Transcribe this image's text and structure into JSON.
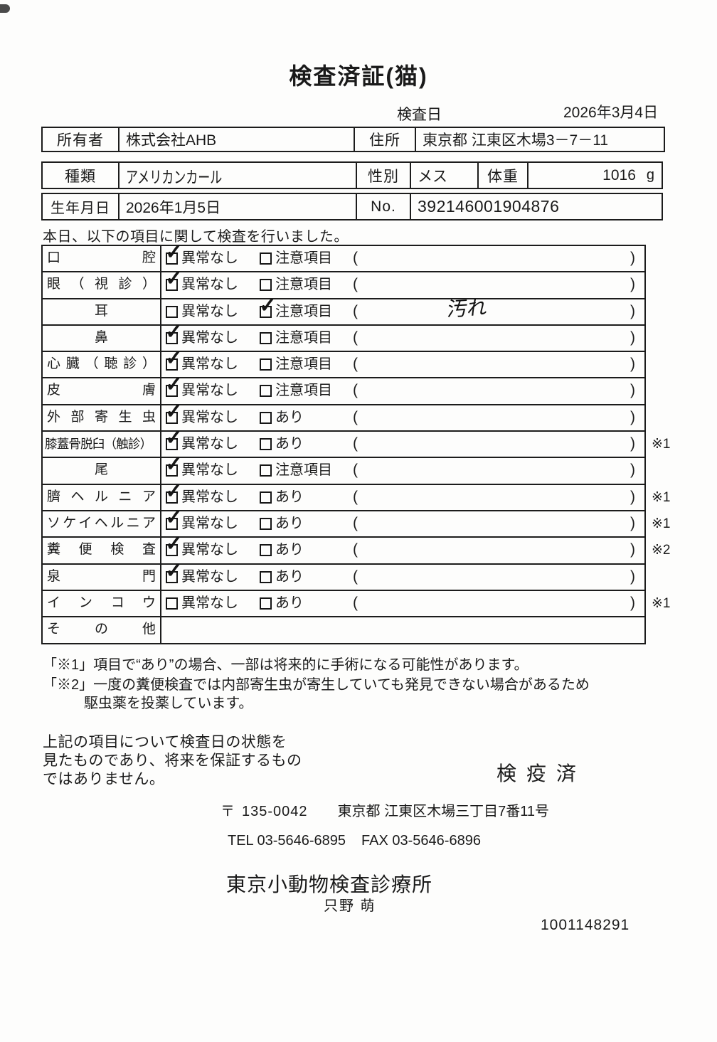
{
  "title": "検査済証(猫)",
  "inspection": {
    "date_label": "検査日",
    "date_value": "2026年3月4日"
  },
  "owner": {
    "label": "所有者",
    "value": "株式会社AHB",
    "address_label": "住所",
    "address_value": "東京都 江東区木場3－7－11"
  },
  "pet": {
    "breed_label": "種類",
    "breed_value": "アメリカンカール",
    "sex_label": "性別",
    "sex_value": "メス",
    "weight_label": "体重",
    "weight_value": "1016",
    "weight_unit": "g",
    "birth_label": "生年月日",
    "birth_value": "2026年1月5日",
    "no_label": "No.",
    "no_value": "392146001904876"
  },
  "intro": "本日、以下の項目に関して検査を行いました。",
  "checklist": {
    "open_paren": "(",
    "close_paren": ")",
    "rows": [
      {
        "item": "口腔",
        "align": "justify",
        "opt1": "異常なし",
        "c1": true,
        "opt2": "注意項目",
        "c2": false,
        "note": "",
        "mark": ""
      },
      {
        "item": "眼（視診）",
        "align": "justify",
        "opt1": "異常なし",
        "c1": true,
        "opt2": "注意項目",
        "c2": false,
        "note": "",
        "mark": ""
      },
      {
        "item": "耳",
        "align": "center",
        "opt1": "異常なし",
        "c1": false,
        "opt2": "注意項目",
        "c2": true,
        "note": "汚れ",
        "mark": ""
      },
      {
        "item": "鼻",
        "align": "center",
        "opt1": "異常なし",
        "c1": true,
        "opt2": "注意項目",
        "c2": false,
        "note": "",
        "mark": ""
      },
      {
        "item": "心臓（聴診）",
        "align": "justify",
        "opt1": "異常なし",
        "c1": true,
        "opt2": "注意項目",
        "c2": false,
        "note": "",
        "mark": ""
      },
      {
        "item": "皮膚",
        "align": "justify",
        "opt1": "異常なし",
        "c1": true,
        "opt2": "注意項目",
        "c2": false,
        "note": "",
        "mark": ""
      },
      {
        "item": "外部寄生虫",
        "align": "justify",
        "opt1": "異常なし",
        "c1": true,
        "opt2": "あり",
        "c2": false,
        "note": "",
        "mark": ""
      },
      {
        "item": "膝蓋骨脱臼（触診）",
        "align": "left",
        "opt1": "異常なし",
        "c1": true,
        "opt2": "あり",
        "c2": false,
        "note": "",
        "mark": "※1"
      },
      {
        "item": "尾",
        "align": "center",
        "opt1": "異常なし",
        "c1": true,
        "opt2": "注意項目",
        "c2": false,
        "note": "",
        "mark": ""
      },
      {
        "item": "臍ヘルニア",
        "align": "justify",
        "opt1": "異常なし",
        "c1": true,
        "opt2": "あり",
        "c2": false,
        "note": "",
        "mark": "※1"
      },
      {
        "item": "ソケイヘルニア",
        "align": "justify",
        "opt1": "異常なし",
        "c1": true,
        "opt2": "あり",
        "c2": false,
        "note": "",
        "mark": "※1"
      },
      {
        "item": "糞便検査",
        "align": "justify",
        "opt1": "異常なし",
        "c1": true,
        "opt2": "あり",
        "c2": false,
        "note": "",
        "mark": "※2"
      },
      {
        "item": "泉門",
        "align": "justify",
        "opt1": "異常なし",
        "c1": true,
        "opt2": "あり",
        "c2": false,
        "note": "",
        "mark": ""
      },
      {
        "item": "インコウ",
        "align": "justify",
        "opt1": "異常なし",
        "c1": false,
        "opt2": "あり",
        "c2": false,
        "note": "",
        "mark": "※1"
      },
      {
        "item": "その他",
        "align": "justify",
        "opt1": null,
        "c1": false,
        "opt2": null,
        "c2": false,
        "note": "",
        "mark": ""
      }
    ]
  },
  "footnotes": {
    "line1": "「※1」項目で“あり”の場合、一部は将来的に手術になる可能性があります。",
    "line2": "「※2」一度の糞便検査では内部寄生虫が寄生していても発見できない場合があるため",
    "line3": "駆虫薬を投薬しています。"
  },
  "disclaimer": {
    "line1": "上記の項目について検査日の状態を",
    "line2": "見たものであり、将来を保証するもの",
    "line3": "ではありません。"
  },
  "stamp": "検疫済",
  "clinic": {
    "postal_mark": "〒",
    "postal_code": "135-0042",
    "address": "東京都 江東区木場三丁目7番11号",
    "tel": "TEL 03-5646-6895",
    "fax": "FAX 03-5646-6896",
    "name": "東京小動物検査診療所",
    "examiner": "只野 萌",
    "doc_number": "1001148291"
  },
  "checkmark_glyph": "✓"
}
